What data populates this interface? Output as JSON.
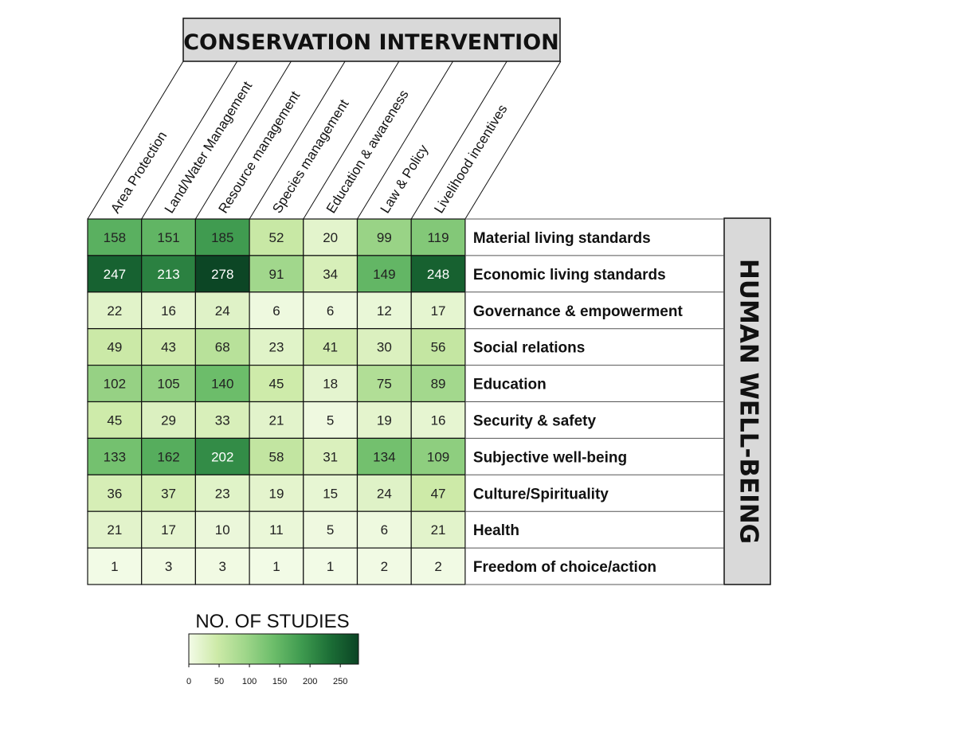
{
  "chart_data": {
    "type": "heatmap",
    "top_title": "CONSERVATION INTERVENTION",
    "side_title": "HUMAN WELL-BEING",
    "columns": [
      "Area Protection",
      "Land/Water Management",
      "Resource management",
      "Species management",
      "Education & awareness",
      "Law & Policy",
      "Livelihood incentives"
    ],
    "rows": [
      "Material living standards",
      "Economic living standards",
      "Governance & empowerment",
      "Social relations",
      "Education",
      "Security & safety",
      "Subjective well-being",
      "Culture/Spirituality",
      "Health",
      "Freedom of choice/action"
    ],
    "values": [
      [
        158,
        151,
        185,
        52,
        20,
        99,
        119
      ],
      [
        247,
        213,
        278,
        91,
        34,
        149,
        248
      ],
      [
        22,
        16,
        24,
        6,
        6,
        12,
        17
      ],
      [
        49,
        43,
        68,
        23,
        41,
        30,
        56
      ],
      [
        102,
        105,
        140,
        45,
        18,
        75,
        89
      ],
      [
        45,
        29,
        33,
        21,
        5,
        19,
        16
      ],
      [
        133,
        162,
        202,
        58,
        31,
        134,
        109
      ],
      [
        36,
        37,
        23,
        19,
        15,
        24,
        47
      ],
      [
        21,
        17,
        10,
        11,
        5,
        6,
        21
      ],
      [
        1,
        3,
        3,
        1,
        1,
        2,
        2
      ]
    ],
    "colorbar": {
      "title": "NO. OF STUDIES",
      "range": [
        0,
        280
      ],
      "ticks": [
        0,
        50,
        100,
        150,
        200,
        250
      ],
      "colors": [
        "#f3fbe7",
        "#cdeaa8",
        "#9fd68a",
        "#6cbd6a",
        "#3e9a4f",
        "#1c6e36",
        "#0b4424"
      ]
    }
  }
}
